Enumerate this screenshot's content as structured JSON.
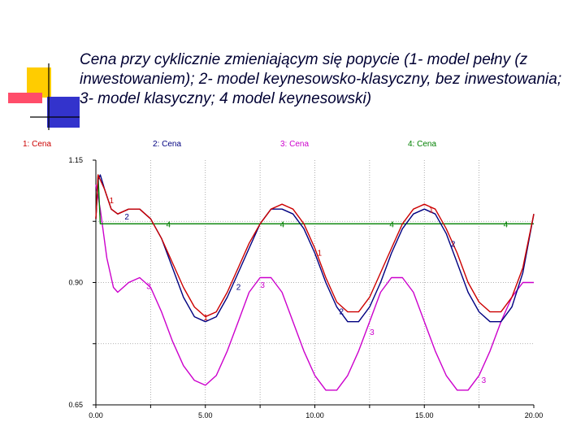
{
  "title": "Cena przy cyklicznie zmieniającym się popycie (1- model pełny (z inwestowaniem); 2- model keynesowsko-klasyczny, bez inwestowania; 3- model klasyczny; 4 model keynesowski)",
  "chart_data": {
    "type": "line",
    "title": "Cena przy cyklicznie zmieniającym się popycie (1- model pełny (z inwestowaniem); 2- model keynesowsko-klasyczny, bez inwestowania; 3- model klasyczny; 4 model keynesowski)",
    "xlim": [
      0,
      20
    ],
    "ylim": [
      0.65,
      1.15
    ],
    "x_ticks": [
      "0.00",
      "5.00",
      "10.00",
      "15.00",
      "20.00"
    ],
    "y_ticks": [
      "1.15",
      "0.90",
      "0.65"
    ],
    "grid": true,
    "legend_position": "top",
    "series": [
      {
        "name": "1: Cena",
        "marker": "1",
        "color": "#cc0000",
        "x": [
          0,
          0.1,
          0.2,
          0.4,
          0.7,
          1.0,
          1.5,
          2.0,
          2.5,
          3.0,
          3.5,
          4.0,
          4.5,
          5.0,
          5.5,
          6.0,
          6.5,
          7.0,
          7.5,
          8.0,
          8.5,
          9.0,
          9.5,
          10.0,
          10.5,
          11.0,
          11.5,
          12.0,
          12.5,
          13.0,
          13.5,
          14.0,
          14.5,
          15.0,
          15.5,
          16.0,
          16.5,
          17.0,
          17.5,
          18.0,
          18.5,
          19.0,
          19.5,
          20.0
        ],
        "y": [
          1.03,
          1.12,
          1.11,
          1.09,
          1.05,
          1.04,
          1.05,
          1.05,
          1.03,
          0.99,
          0.94,
          0.89,
          0.85,
          0.83,
          0.84,
          0.88,
          0.93,
          0.98,
          1.02,
          1.05,
          1.06,
          1.05,
          1.02,
          0.97,
          0.91,
          0.86,
          0.84,
          0.84,
          0.87,
          0.92,
          0.97,
          1.02,
          1.05,
          1.06,
          1.05,
          1.01,
          0.96,
          0.9,
          0.86,
          0.84,
          0.84,
          0.87,
          0.93,
          1.04
        ]
      },
      {
        "name": "2: Cena",
        "marker": "2",
        "color": "#000080",
        "x": [
          0,
          0.1,
          0.2,
          0.4,
          0.7,
          1.0,
          1.5,
          2.0,
          2.5,
          3.0,
          3.5,
          4.0,
          4.5,
          5.0,
          5.5,
          6.0,
          6.5,
          7.0,
          7.5,
          8.0,
          8.5,
          9.0,
          9.5,
          10.0,
          10.5,
          11.0,
          11.5,
          12.0,
          12.5,
          13.0,
          13.5,
          14.0,
          14.5,
          15.0,
          15.5,
          16.0,
          16.5,
          17.0,
          17.5,
          18.0,
          18.5,
          19.0,
          19.5,
          20.0
        ],
        "y": [
          1.03,
          1.11,
          1.12,
          1.09,
          1.05,
          1.04,
          1.05,
          1.05,
          1.03,
          0.99,
          0.93,
          0.87,
          0.83,
          0.82,
          0.83,
          0.87,
          0.92,
          0.97,
          1.02,
          1.05,
          1.05,
          1.04,
          1.01,
          0.96,
          0.9,
          0.85,
          0.82,
          0.82,
          0.85,
          0.9,
          0.96,
          1.01,
          1.04,
          1.05,
          1.04,
          1.0,
          0.94,
          0.88,
          0.84,
          0.82,
          0.82,
          0.85,
          0.92,
          1.04
        ]
      },
      {
        "name": "3: Cena",
        "marker": "3",
        "color": "#cc00cc",
        "x": [
          0,
          0.2,
          0.5,
          0.8,
          1.0,
          1.5,
          2.0,
          2.5,
          3.0,
          3.5,
          4.0,
          4.5,
          5.0,
          5.5,
          6.0,
          6.5,
          7.0,
          7.5,
          8.0,
          8.5,
          9.0,
          9.5,
          10.0,
          10.5,
          11.0,
          11.5,
          12.0,
          12.5,
          13.0,
          13.5,
          14.0,
          14.5,
          15.0,
          15.5,
          16.0,
          16.5,
          17.0,
          17.5,
          18.0,
          18.5,
          19.0,
          19.5,
          20.0
        ],
        "y": [
          1.1,
          1.05,
          0.95,
          0.89,
          0.88,
          0.9,
          0.91,
          0.89,
          0.84,
          0.78,
          0.73,
          0.7,
          0.69,
          0.71,
          0.76,
          0.82,
          0.88,
          0.91,
          0.91,
          0.88,
          0.82,
          0.76,
          0.71,
          0.68,
          0.68,
          0.71,
          0.76,
          0.82,
          0.88,
          0.91,
          0.91,
          0.88,
          0.82,
          0.76,
          0.71,
          0.68,
          0.68,
          0.71,
          0.76,
          0.82,
          0.87,
          0.9,
          0.9
        ]
      },
      {
        "name": "4: Cena",
        "marker": "4",
        "color": "#008000",
        "x": [
          0,
          0.1,
          0.2,
          20.0
        ],
        "y": [
          1.03,
          1.12,
          1.02,
          1.02
        ]
      }
    ],
    "marker_positions": {
      "1": [
        0.5,
        4.8,
        10.0,
        15.1
      ],
      "2": [
        1.2,
        6.3,
        11.0,
        16.1
      ],
      "3": [
        2.2,
        7.4,
        12.4,
        17.5
      ],
      "4": [
        3.1,
        8.3,
        13.3,
        18.5
      ]
    }
  }
}
